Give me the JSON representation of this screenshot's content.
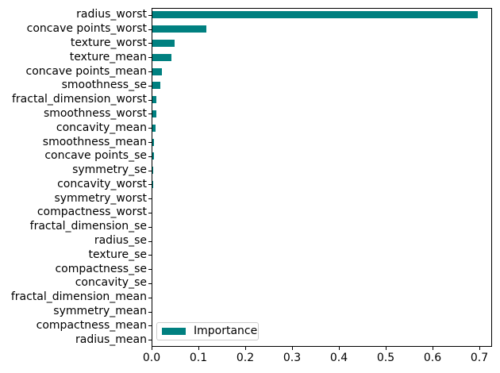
{
  "colors": {
    "bar": "#008080",
    "spine": "#000000",
    "text": "#000000",
    "legend_border": "#cccccc",
    "background": "#ffffff"
  },
  "chart_data": {
    "type": "bar",
    "orientation": "horizontal",
    "title": "",
    "xlabel": "",
    "ylabel": "",
    "grid": false,
    "bar_color": "#008080",
    "bar_height_fraction": 0.5,
    "legend": {
      "label": "Importance",
      "position": "lower-left"
    },
    "xlim": [
      0,
      0.728
    ],
    "x_ticks": {
      "values": [
        0.0,
        0.1,
        0.2,
        0.3,
        0.4,
        0.5,
        0.6,
        0.7
      ],
      "labels": [
        "0.0",
        "0.1",
        "0.2",
        "0.3",
        "0.4",
        "0.5",
        "0.6",
        "0.7"
      ]
    },
    "categories": [
      "radius_worst",
      "concave points_worst",
      "texture_worst",
      "texture_mean",
      "concave points_mean",
      "smoothness_se",
      "fractal_dimension_worst",
      "smoothness_worst",
      "concavity_mean",
      "smoothness_mean",
      "concave points_se",
      "symmetry_se",
      "concavity_worst",
      "symmetry_worst",
      "compactness_worst",
      "fractal_dimension_se",
      "radius_se",
      "texture_se",
      "compactness_se",
      "concavity_se",
      "fractal_dimension_mean",
      "symmetry_mean",
      "compactness_mean",
      "radius_mean"
    ],
    "values": [
      0.695,
      0.115,
      0.047,
      0.041,
      0.02,
      0.017,
      0.009,
      0.008,
      0.006,
      0.004,
      0.004,
      0.0025,
      0.0015,
      0.0,
      0.0,
      0.0,
      0.0,
      0.0,
      0.0,
      0.0,
      0.0,
      0.0,
      0.0,
      0.0
    ],
    "series_name": "Importance"
  }
}
